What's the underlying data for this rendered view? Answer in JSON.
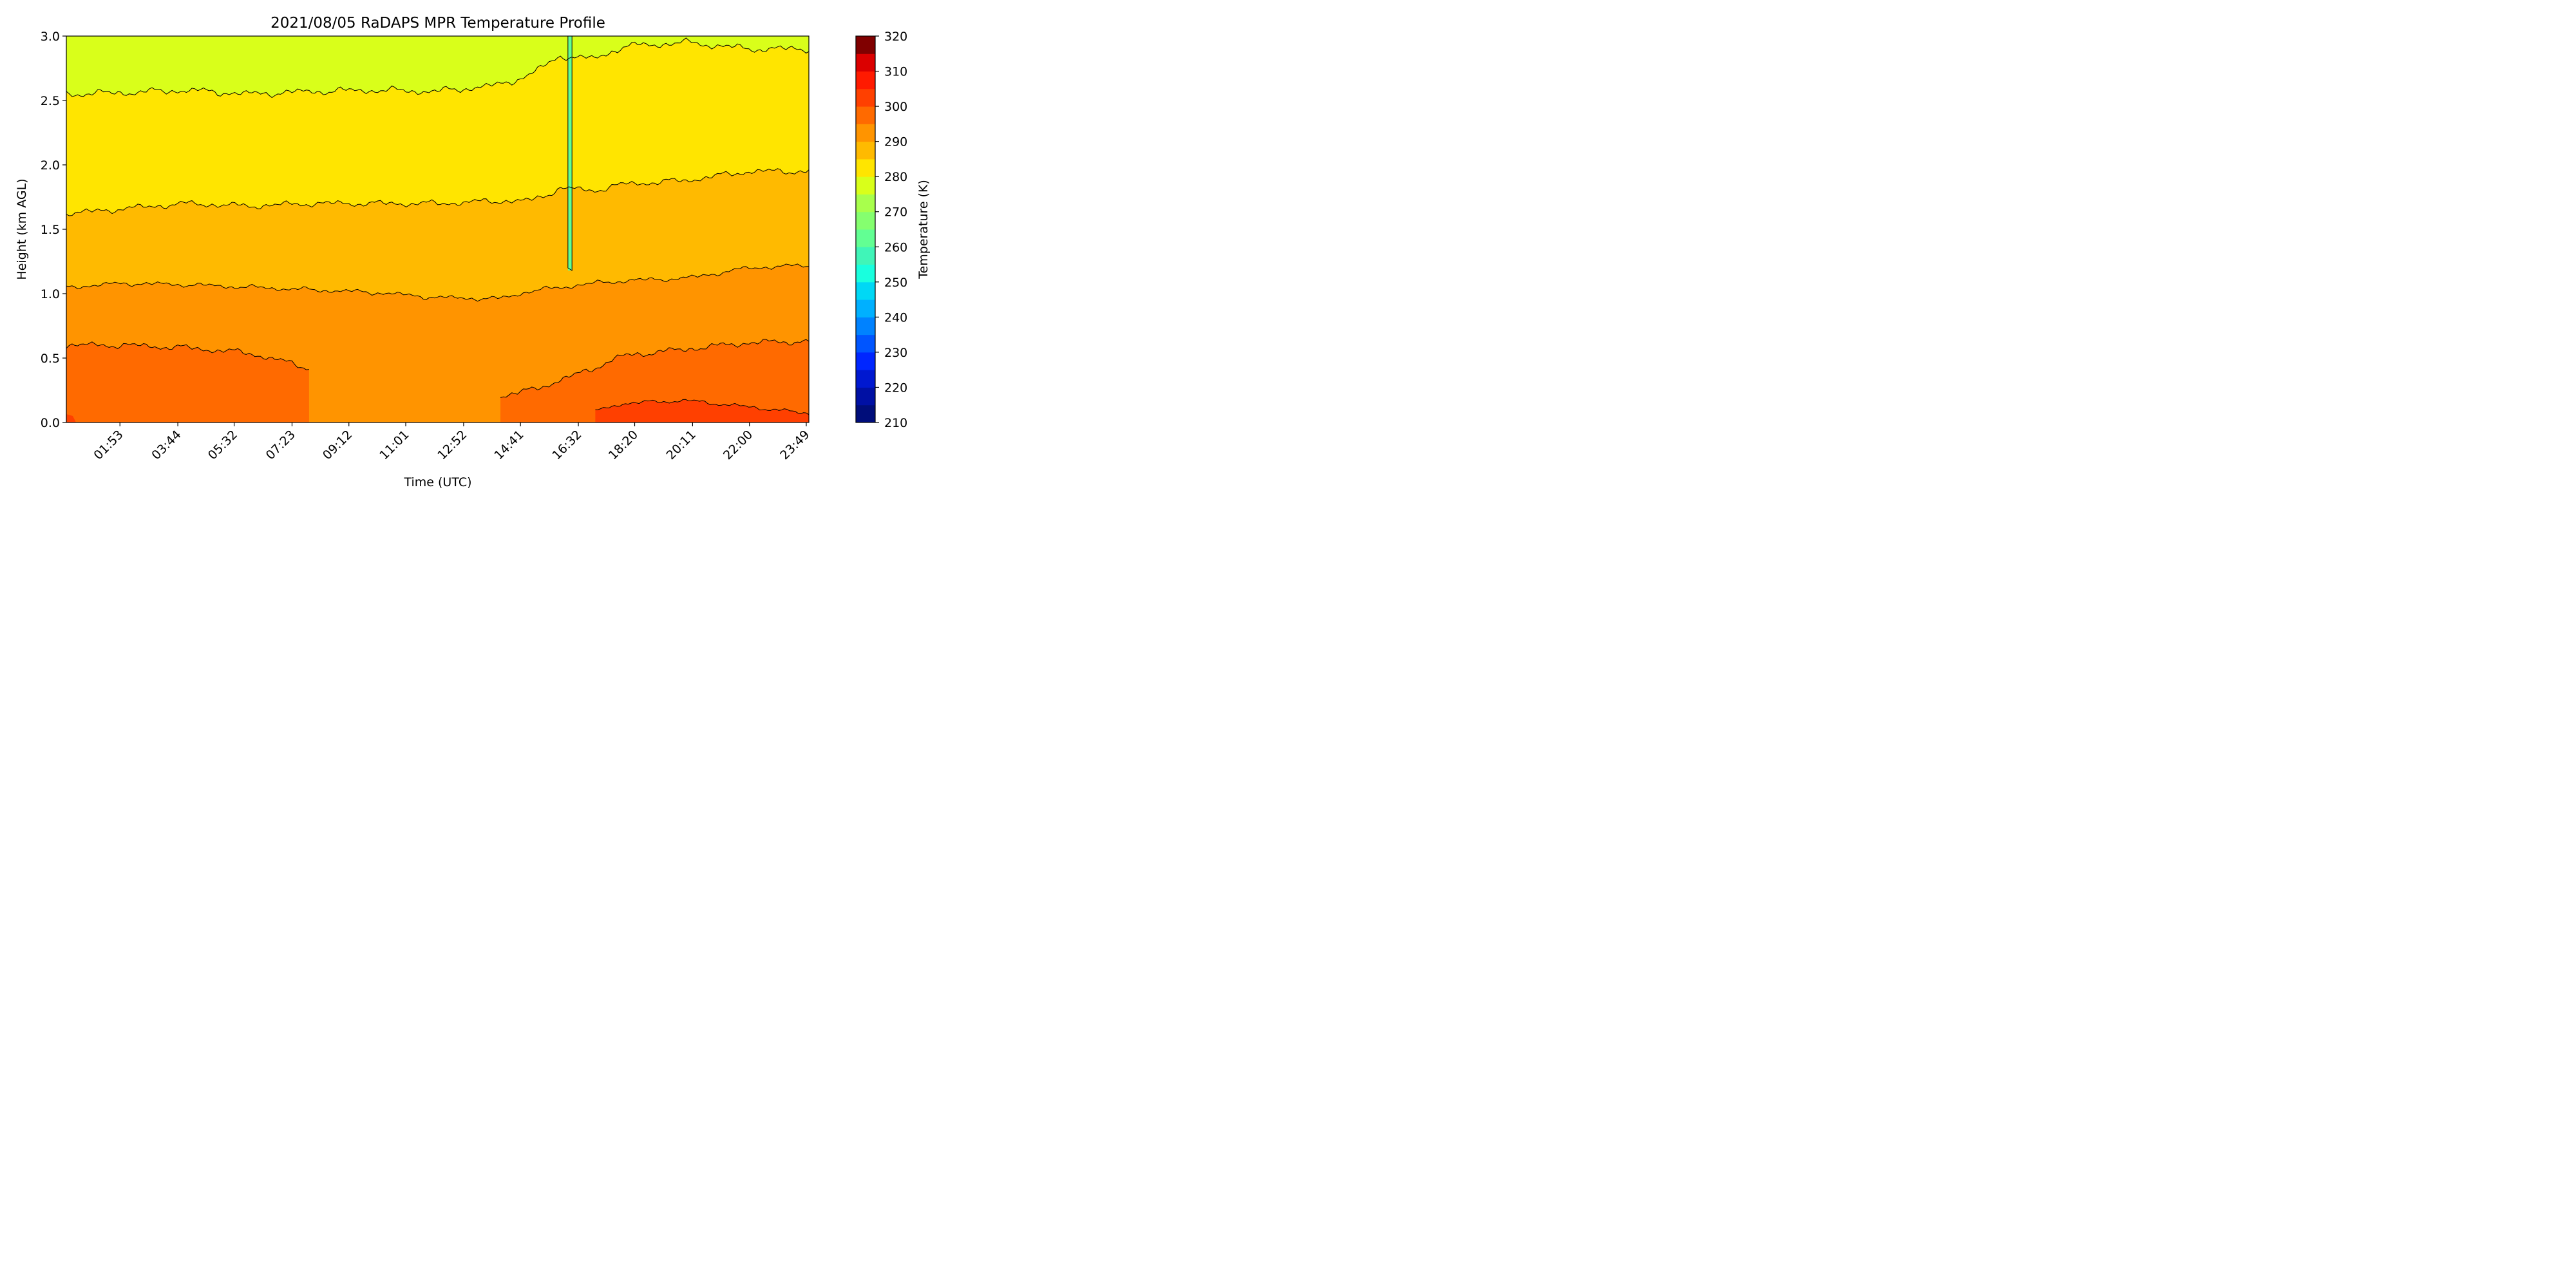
{
  "chart_data": {
    "type": "contour",
    "title": "2021/08/05 RaDAPS MPR Temperature Profile",
    "xlabel": "Time (UTC)",
    "ylabel": "Height (km AGL)",
    "x_tick_labels": [
      "01:53",
      "03:44",
      "05:32",
      "07:23",
      "09:12",
      "11:01",
      "12:52",
      "14:41",
      "16:32",
      "18:20",
      "20:11",
      "22:00",
      "23:49"
    ],
    "x_ticks_hours": [
      1.883,
      3.733,
      5.533,
      7.383,
      9.2,
      11.017,
      12.867,
      14.683,
      16.533,
      18.333,
      20.183,
      22.0,
      23.817
    ],
    "xlim_hours": [
      0.17,
      23.9
    ],
    "ylim": [
      0.0,
      3.0
    ],
    "y_ticks": [
      0.0,
      0.5,
      1.0,
      1.5,
      2.0,
      2.5,
      3.0
    ],
    "y_tick_labels": [
      "0.0",
      "0.5",
      "1.0",
      "1.5",
      "2.0",
      "2.5",
      "3.0"
    ],
    "colorbar": {
      "label": "Temperature (K)",
      "min": 210,
      "max": 320,
      "step": 5,
      "tick_values": [
        210,
        220,
        230,
        240,
        250,
        260,
        270,
        280,
        290,
        300,
        310,
        320
      ],
      "tick_labels": [
        "210",
        "220",
        "230",
        "240",
        "250",
        "260",
        "270",
        "280",
        "290",
        "300",
        "310",
        "320"
      ],
      "colors": [
        "#000d7a",
        "#0010a4",
        "#0018d0",
        "#0026ff",
        "#0055ff",
        "#0082ff",
        "#00b0ff",
        "#00d8f5",
        "#19ffde",
        "#40f5b8",
        "#62ff93",
        "#85ff6f",
        "#a8ff4c",
        "#d9ff1a",
        "#ffe500",
        "#ffba00",
        "#ff9400",
        "#ff6a00",
        "#ff4000",
        "#ff1a00",
        "#db0000",
        "#800000"
      ]
    },
    "bands": [
      {
        "range_K": [
          300,
          305
        ],
        "color": "#ff4000",
        "description": "warmest near-surface layer, afternoon/evening"
      },
      {
        "range_K": [
          295,
          300
        ],
        "color": "#ff6a00"
      },
      {
        "range_K": [
          290,
          295
        ],
        "color": "#ff9400"
      },
      {
        "range_K": [
          285,
          290
        ],
        "color": "#ffba00"
      },
      {
        "range_K": [
          280,
          285
        ],
        "color": "#ffe500"
      },
      {
        "range_K": [
          275,
          280
        ],
        "color": "#d9ff1a"
      },
      {
        "range_K": [
          265,
          270
        ],
        "color": "#62ff93",
        "description": "narrow cold anomaly around 16:20 UTC"
      }
    ],
    "contour_levels_K": [
      280,
      285,
      290,
      295,
      300
    ],
    "isotherm_heights_km": {
      "x_hours": [
        0.17,
        2,
        4,
        6,
        8,
        10,
        12,
        14,
        15,
        16,
        17,
        18,
        20,
        22,
        23.9
      ],
      "K280": [
        2.55,
        2.56,
        2.58,
        2.55,
        2.57,
        2.58,
        2.57,
        2.62,
        2.7,
        2.85,
        2.82,
        2.92,
        2.95,
        2.9,
        2.9
      ],
      "K285": [
        1.62,
        1.66,
        1.7,
        1.68,
        1.7,
        1.7,
        1.7,
        1.72,
        1.72,
        1.82,
        1.8,
        1.85,
        1.88,
        1.95,
        1.95
      ],
      "K290": [
        1.05,
        1.08,
        1.07,
        1.05,
        1.03,
        1.01,
        0.97,
        0.96,
        1.02,
        1.05,
        1.08,
        1.1,
        1.12,
        1.2,
        1.22
      ],
      "K295": [
        0.6,
        0.6,
        0.58,
        0.54,
        0.42,
        null,
        null,
        0.2,
        0.25,
        0.33,
        0.42,
        0.52,
        0.57,
        0.62,
        0.63
      ],
      "K300": [
        null,
        null,
        null,
        null,
        null,
        null,
        null,
        null,
        null,
        null,
        0.08,
        0.15,
        0.17,
        0.12,
        0.07
      ]
    },
    "grid": false,
    "legend": "colorbar-right"
  }
}
